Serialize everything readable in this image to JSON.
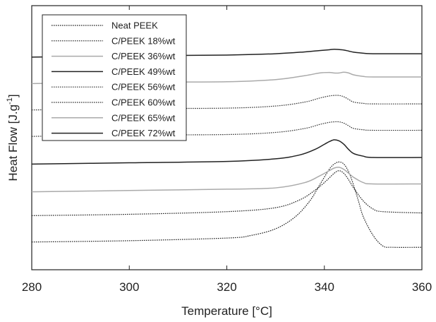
{
  "chart_data": {
    "type": "line",
    "xlabel": "Temperature [°C]",
    "ylabel": "Heat Flow [J.g",
    "ylabel_sup": "-1",
    "ylabel_end": "]",
    "xlim": [
      280,
      360
    ],
    "x_ticks": [
      280,
      300,
      320,
      340,
      360
    ],
    "x_tick_labels": [
      "280",
      "300",
      "320",
      "340",
      "360"
    ],
    "ylim": [
      0,
      100
    ],
    "y_tick_labels": [],
    "grid": false,
    "legend_position": "top-left",
    "series": [
      {
        "name": "Neat PEEK",
        "color": "#222222",
        "style": "dotted",
        "x": [
          280,
          300,
          320,
          325,
          330,
          334,
          337,
          339,
          341,
          342,
          343,
          344,
          345,
          346,
          347,
          348,
          350,
          352,
          354,
          360
        ],
        "y": [
          10.5,
          11,
          12,
          13,
          15.5,
          20,
          26,
          32,
          38,
          40,
          40.8,
          40,
          37,
          32,
          26,
          20,
          13,
          9,
          8.5,
          8.5
        ]
      },
      {
        "name": "C/PEEK 18%wt",
        "color": "#222222",
        "style": "dotted",
        "x": [
          280,
          300,
          320,
          330,
          335,
          338,
          340,
          342,
          343,
          344,
          345,
          346,
          348,
          350,
          352,
          360
        ],
        "y": [
          20.5,
          21,
          22,
          23.5,
          26.5,
          30,
          33,
          36.5,
          37.5,
          36.5,
          34,
          31,
          26,
          23,
          22,
          21.5
        ]
      },
      {
        "name": "C/PEEK 36%wt",
        "color": "#aaaaaa",
        "style": "solid",
        "x": [
          280,
          300,
          320,
          330,
          336,
          339,
          341,
          342,
          343,
          344,
          345,
          346,
          348,
          350,
          360
        ],
        "y": [
          29.5,
          30,
          30.5,
          31,
          33,
          35.5,
          37.5,
          38.5,
          38.8,
          38,
          36.5,
          35,
          33,
          32.5,
          32.5
        ]
      },
      {
        "name": "C/PEEK 49%wt",
        "color": "#222222",
        "style": "solid",
        "x": [
          280,
          300,
          320,
          330,
          335,
          338,
          340,
          341,
          342,
          343,
          344,
          345,
          346,
          348,
          350,
          360
        ],
        "y": [
          40,
          40.5,
          41,
          42,
          43.5,
          45.5,
          47.5,
          48.5,
          49.2,
          48.8,
          47.5,
          45.5,
          44,
          43,
          42.5,
          42.5
        ]
      },
      {
        "name": "C/PEEK 56%wt",
        "color": "#333333",
        "style": "dotted",
        "x": [
          280,
          300,
          320,
          330,
          336,
          339,
          341,
          342,
          343,
          344,
          345,
          346,
          348,
          350,
          360
        ],
        "y": [
          50.5,
          51,
          51.2,
          52,
          53.5,
          55,
          55.8,
          56,
          56,
          55.5,
          54.5,
          53.5,
          53,
          52.8,
          52.8
        ]
      },
      {
        "name": "C/PEEK 60%wt",
        "color": "#333333",
        "style": "dotted",
        "x": [
          280,
          300,
          320,
          330,
          336,
          339,
          341,
          342,
          343,
          344,
          345,
          346,
          348,
          350,
          360
        ],
        "y": [
          60.5,
          61,
          61.2,
          62,
          63.5,
          65,
          65.8,
          66,
          66,
          65.5,
          64.5,
          63.5,
          63,
          62.8,
          62.8
        ]
      },
      {
        "name": "C/PEEK 65%wt",
        "color": "#aaaaaa",
        "style": "solid",
        "x": [
          280,
          300,
          320,
          330,
          336,
          339,
          341,
          342,
          343,
          344,
          345,
          346,
          348,
          350,
          360
        ],
        "y": [
          70.5,
          71,
          71.2,
          72,
          73.5,
          74.5,
          74.7,
          74.5,
          74.5,
          74.8,
          74.5,
          73.8,
          73.2,
          73,
          73
        ]
      },
      {
        "name": "C/PEEK 72%wt",
        "color": "#222222",
        "style": "solid",
        "x": [
          280,
          300,
          320,
          330,
          336,
          339,
          341,
          342,
          343,
          344,
          345,
          346,
          348,
          350,
          360
        ],
        "y": [
          80.5,
          81,
          81.3,
          81.8,
          82.5,
          83,
          83.3,
          83.5,
          83.4,
          83.2,
          82.8,
          82.4,
          82,
          81.8,
          81.8
        ]
      }
    ]
  }
}
